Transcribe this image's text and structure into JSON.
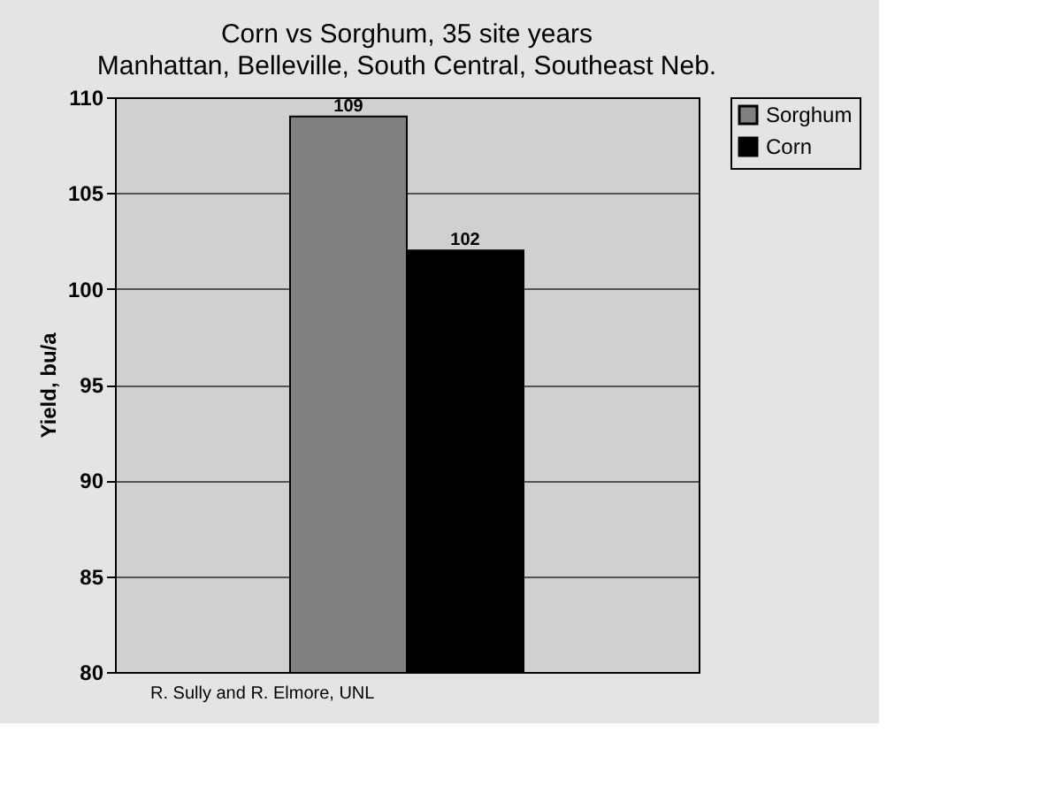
{
  "chart_data": {
    "type": "bar",
    "title": "Corn vs Sorghum, 35 site years",
    "subtitle": "Manhattan, Belleville, South Central, Southeast Neb.",
    "ylabel": "Yield, bu/a",
    "categories": [
      null
    ],
    "series": [
      {
        "name": "Sorghum",
        "color": "#808080",
        "values": [
          109
        ]
      },
      {
        "name": "Corn",
        "color": "#000000",
        "values": [
          102
        ]
      }
    ],
    "ylim": [
      80,
      110
    ],
    "yticks": [
      80,
      85,
      90,
      95,
      100,
      105,
      110
    ],
    "grid": "y",
    "legend": "right",
    "data_labels": true,
    "tick_labels": "y",
    "annotations": [
      "R. Sully and R. Elmore, UNL"
    ]
  }
}
